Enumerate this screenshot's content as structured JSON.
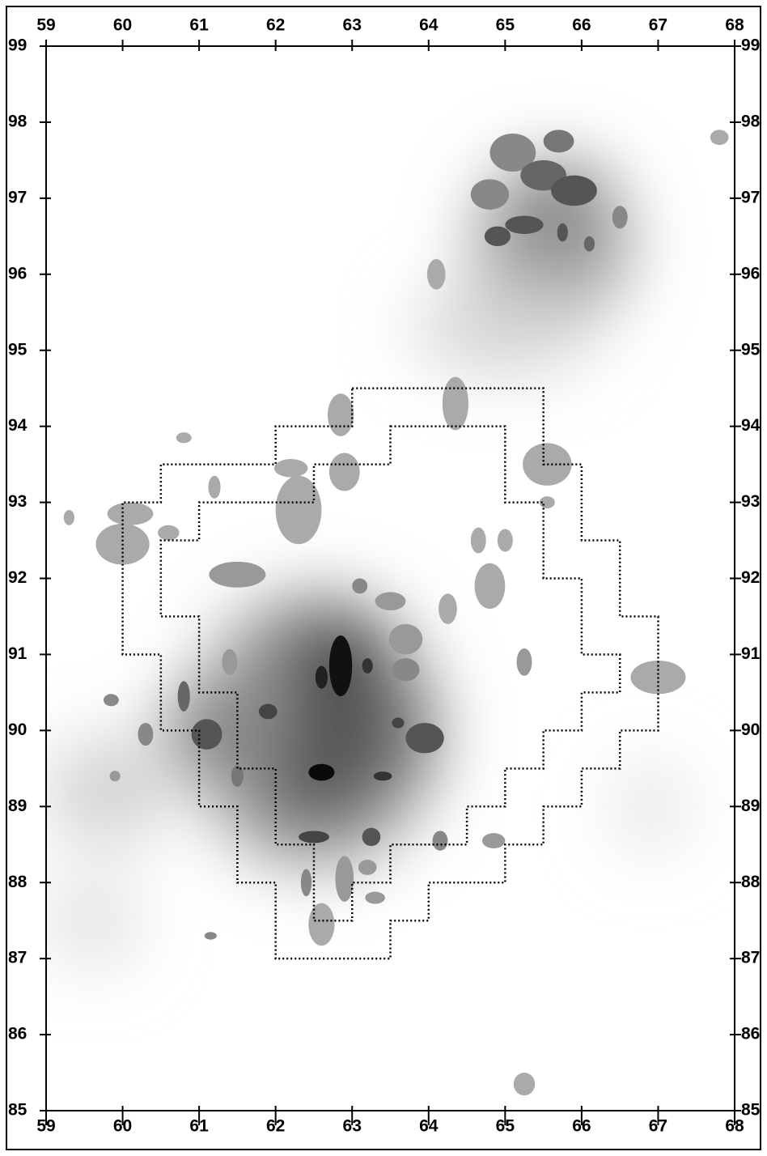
{
  "map": {
    "xlim": [
      59,
      68
    ],
    "ylim": [
      85,
      99
    ],
    "xticks": [
      59,
      60,
      61,
      62,
      63,
      64,
      65,
      66,
      67,
      68
    ],
    "yticks": [
      85,
      86,
      87,
      88,
      89,
      90,
      91,
      92,
      93,
      94,
      95,
      96,
      97,
      98,
      99
    ]
  }
}
